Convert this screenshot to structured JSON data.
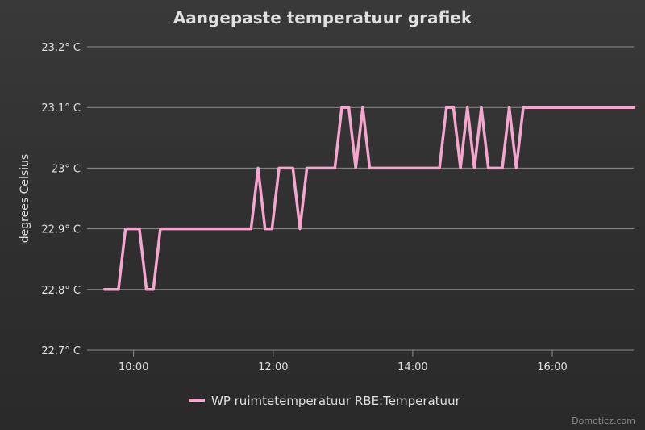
{
  "chart_data": {
    "type": "line",
    "title": "Aangepaste temperatuur grafiek",
    "ylabel": "degrees Celsius",
    "xlabel": "",
    "credit": "Domoticz.com",
    "ylim": [
      22.7,
      23.2
    ],
    "yticks": [
      {
        "value": 22.7,
        "label": "22.7° C"
      },
      {
        "value": 22.8,
        "label": "22.8° C"
      },
      {
        "value": 22.9,
        "label": "22.9° C"
      },
      {
        "value": 23.0,
        "label": "23° C"
      },
      {
        "value": 23.1,
        "label": "23.1° C"
      },
      {
        "value": 23.2,
        "label": "23.2° C"
      }
    ],
    "xlim": [
      "09:20",
      "17:10"
    ],
    "xticks": [
      "10:00",
      "12:00",
      "14:00",
      "16:00"
    ],
    "grid": true,
    "legend_position": "bottom-center",
    "series": [
      {
        "name": "WP ruimtetemperatuur RBE:Temperatuur",
        "color": "#f4a6cf",
        "points": [
          [
            "09:35",
            22.8
          ],
          [
            "09:47",
            22.8
          ],
          [
            "09:53",
            22.9
          ],
          [
            "10:05",
            22.9
          ],
          [
            "10:11",
            22.8
          ],
          [
            "10:17",
            22.8
          ],
          [
            "10:23",
            22.9
          ],
          [
            "11:41",
            22.9
          ],
          [
            "11:47",
            23.0
          ],
          [
            "11:53",
            22.9
          ],
          [
            "11:59",
            22.9
          ],
          [
            "12:05",
            23.0
          ],
          [
            "12:17",
            23.0
          ],
          [
            "12:23",
            22.9
          ],
          [
            "12:29",
            23.0
          ],
          [
            "12:53",
            23.0
          ],
          [
            "12:59",
            23.1
          ],
          [
            "13:05",
            23.1
          ],
          [
            "13:11",
            23.0
          ],
          [
            "13:17",
            23.1
          ],
          [
            "13:23",
            23.0
          ],
          [
            "14:23",
            23.0
          ],
          [
            "14:29",
            23.1
          ],
          [
            "14:35",
            23.1
          ],
          [
            "14:41",
            23.0
          ],
          [
            "14:47",
            23.1
          ],
          [
            "14:53",
            23.0
          ],
          [
            "14:59",
            23.1
          ],
          [
            "15:05",
            23.0
          ],
          [
            "15:17",
            23.0
          ],
          [
            "15:23",
            23.1
          ],
          [
            "15:29",
            23.0
          ],
          [
            "15:35",
            23.1
          ],
          [
            "17:10",
            23.1
          ]
        ]
      }
    ]
  }
}
